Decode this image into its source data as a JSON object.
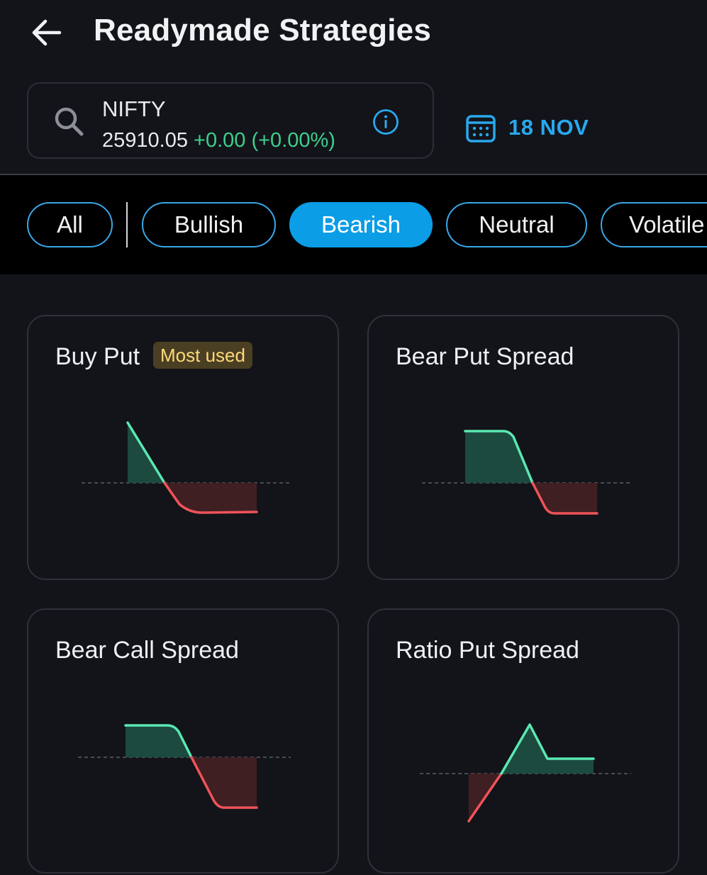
{
  "header": {
    "title": "Readymade Strategies"
  },
  "instrument": {
    "symbol": "NIFTY",
    "price": "25910.05",
    "change": "+0.00 (+0.00%)"
  },
  "expiry": {
    "label": "18 NOV"
  },
  "filters": [
    {
      "label": "All",
      "active": false
    },
    {
      "label": "Bullish",
      "active": false
    },
    {
      "label": "Bearish",
      "active": true
    },
    {
      "label": "Neutral",
      "active": false
    },
    {
      "label": "Volatile",
      "active": false
    }
  ],
  "strategies": [
    {
      "name": "Buy Put",
      "badge": "Most used"
    },
    {
      "name": "Bear Put Spread"
    },
    {
      "name": "Bear Call Spread"
    },
    {
      "name": "Ratio Put Spread"
    }
  ],
  "colors": {
    "accent": "#0b9de6",
    "profit": "#5be8b2",
    "loss": "#f0535a",
    "profit_fill": "#1c4a3e",
    "loss_fill": "#3f1f22",
    "positive_change": "#3ecf8e",
    "badge_text": "#ffd97a"
  },
  "icons": {
    "back": "arrow-left-icon",
    "search": "search-icon",
    "info": "info-icon",
    "calendar": "calendar-icon"
  }
}
